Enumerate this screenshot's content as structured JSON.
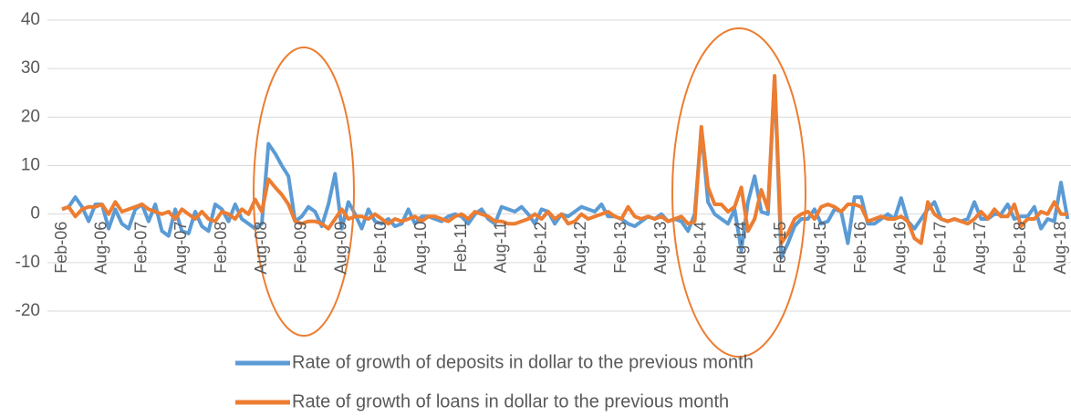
{
  "chart_data": {
    "type": "line",
    "categories": [
      "Feb-06",
      null,
      null,
      null,
      null,
      null,
      "Aug-06",
      null,
      null,
      null,
      null,
      null,
      "Feb-07",
      null,
      null,
      null,
      null,
      null,
      "Aug-07",
      null,
      null,
      null,
      null,
      null,
      "Feb-08",
      null,
      null,
      null,
      null,
      null,
      "Aug-08",
      null,
      null,
      null,
      null,
      null,
      "Feb-09",
      null,
      null,
      null,
      null,
      null,
      "Aug-09",
      null,
      null,
      null,
      null,
      null,
      "Feb-10",
      null,
      null,
      null,
      null,
      null,
      "Aug-10",
      null,
      null,
      null,
      null,
      null,
      "Feb-11",
      null,
      null,
      null,
      null,
      null,
      "Aug-11",
      null,
      null,
      null,
      null,
      null,
      "Feb-12",
      null,
      null,
      null,
      null,
      null,
      "Aug-12",
      null,
      null,
      null,
      null,
      null,
      "Feb-13",
      null,
      null,
      null,
      null,
      null,
      "Aug-13",
      null,
      null,
      null,
      null,
      null,
      "Feb-14",
      null,
      null,
      null,
      null,
      null,
      "Aug-14",
      null,
      null,
      null,
      null,
      null,
      "Feb-15",
      null,
      null,
      null,
      null,
      null,
      "Aug-15",
      null,
      null,
      null,
      null,
      null,
      "Feb-16",
      null,
      null,
      null,
      null,
      null,
      "Aug-16",
      null,
      null,
      null,
      null,
      null,
      "Feb-17",
      null,
      null,
      null,
      null,
      null,
      "Aug-17",
      null,
      null,
      null,
      null,
      null,
      "Feb-18",
      null,
      null,
      null,
      null,
      null,
      "Aug-18",
      null
    ],
    "series": [
      {
        "name": "Rate of growth of deposits in dollar to the previous month",
        "color": "#5b9bd5",
        "values": [
          1,
          1.5,
          3.5,
          1.5,
          -1.5,
          2,
          2,
          -3,
          1,
          -2,
          -3,
          1,
          2,
          -1.5,
          2,
          -3.5,
          -4.5,
          1,
          -3.5,
          -4,
          0.5,
          -2.5,
          -3.5,
          2,
          1,
          -1.5,
          2,
          -1,
          -2,
          -3,
          -2,
          14.5,
          12.5,
          10,
          7.8,
          -1.5,
          -0.5,
          1.5,
          0.5,
          -2.5,
          2,
          8.3,
          -3,
          2.5,
          0,
          -3,
          1,
          -1.5,
          -2,
          -1,
          -2.5,
          -2,
          1,
          -2,
          -0.5,
          -0.5,
          -1,
          -1.5,
          -0.5,
          0,
          -0.5,
          -2,
          0,
          1,
          -1,
          -2,
          1.5,
          1,
          0.5,
          1.5,
          0,
          -2,
          1,
          0.5,
          -2,
          0,
          -0.5,
          0.5,
          1.5,
          1,
          0.5,
          2,
          -0.5,
          -0.5,
          -1,
          -2,
          -2.5,
          -1.5,
          -0.5,
          -1,
          0,
          -1.5,
          -1,
          -1.5,
          -3.5,
          0,
          17.5,
          2.5,
          0,
          -1,
          -2,
          1,
          -7.5,
          2.5,
          7.8,
          0.5,
          0,
          28,
          -9,
          -6,
          -2.5,
          -1,
          -1,
          1,
          -2,
          -1.5,
          1,
          0.5,
          -6,
          3.5,
          3.5,
          -2,
          -2,
          -1,
          0,
          -1,
          3.3,
          -1.5,
          -3,
          -1,
          1,
          2.5,
          -1,
          -1.5,
          -1,
          -1.5,
          -1,
          2.5,
          -1,
          -1,
          0,
          0,
          2,
          -1,
          -0.5,
          -0.5,
          1.5,
          -3,
          -1,
          -1.5,
          6.5,
          -1
        ]
      },
      {
        "name": "Rate of growth of loans in dollar to the previous month",
        "color": "#ed7d31",
        "values": [
          1,
          1.5,
          -0.5,
          1,
          1.5,
          1.5,
          2,
          0,
          2.5,
          0.5,
          1,
          1.5,
          2,
          1,
          0.5,
          0,
          0.5,
          -1,
          1,
          0,
          -1,
          0.5,
          -1,
          -1.5,
          0.5,
          0,
          -1,
          1,
          0,
          3,
          0.5,
          7.2,
          5.5,
          4,
          2,
          -1.5,
          -2,
          -1.5,
          -1.5,
          -2,
          -3,
          -1,
          1,
          -1,
          -0.5,
          -0.5,
          -1,
          0,
          -1,
          -2,
          -1,
          -1.5,
          -1,
          -0.5,
          -1.5,
          -0.5,
          -0.5,
          -1,
          -1.5,
          -0.5,
          0,
          -1,
          0.5,
          0,
          -0.5,
          -1.5,
          -1.5,
          -2,
          -2,
          -1.5,
          -1,
          0,
          -1,
          0.5,
          -1,
          0,
          -2,
          -1.5,
          0,
          -1,
          -0.5,
          0,
          0.5,
          -0.5,
          -1,
          1.5,
          -0.5,
          -1,
          -0.5,
          -1,
          -0.5,
          -1.5,
          -1,
          -0.5,
          -2,
          -1.5,
          18,
          5.5,
          2,
          2,
          0.5,
          1.5,
          5.5,
          -3.5,
          -1,
          5,
          1,
          28.5,
          -6,
          -4,
          -1,
          0,
          0.5,
          -1,
          1.5,
          2,
          1.5,
          0.5,
          2,
          2,
          1.5,
          -1.5,
          -1,
          -0.5,
          -1,
          -1,
          -0.5,
          -1.5,
          -5,
          -6,
          2.5,
          0,
          -1,
          -1.5,
          -1,
          -1.5,
          -2,
          -1,
          0.5,
          -1,
          1,
          -0.5,
          -0.5,
          2,
          -2.5,
          -1,
          -1,
          0.5,
          0,
          2.5,
          0,
          0
        ]
      }
    ],
    "ylim": [
      -20,
      40
    ],
    "yticks": [
      -20,
      -10,
      0,
      10,
      20,
      30,
      40
    ],
    "grid": true
  }
}
